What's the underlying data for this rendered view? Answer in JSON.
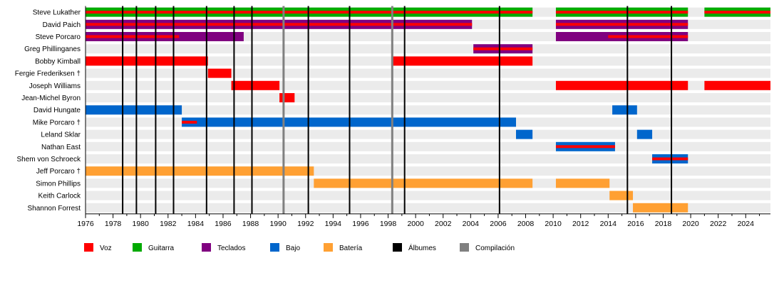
{
  "chart_data": {
    "type": "timeline",
    "x_range": [
      1976,
      2025.8
    ],
    "x_ticks": [
      1976,
      1978,
      1980,
      1982,
      1984,
      1986,
      1988,
      1990,
      1992,
      1994,
      1996,
      1998,
      2000,
      2002,
      2004,
      2006,
      2008,
      2010,
      2012,
      2014,
      2016,
      2018,
      2020,
      2022,
      2024
    ],
    "members": [
      {
        "name": "Steve Lukather",
        "bars": [
          {
            "role": "Guitarra",
            "start": 1976,
            "end": 2008.5,
            "overlay": "Voz"
          },
          {
            "role": "Guitarra",
            "start": 2010.2,
            "end": 2019.8,
            "overlay": "Voz"
          },
          {
            "role": "Guitarra",
            "start": 2021,
            "end": 2025.8,
            "overlay": "Voz"
          }
        ]
      },
      {
        "name": "David Paich",
        "bars": [
          {
            "role": "Teclados",
            "start": 1976,
            "end": 2004.1,
            "overlay": "Voz"
          },
          {
            "role": "Teclados",
            "start": 2010.2,
            "end": 2019.8,
            "overlay": "Voz"
          }
        ]
      },
      {
        "name": "Steve Porcaro",
        "bars": [
          {
            "role": "Teclados",
            "start": 1976,
            "end": 1987.5,
            "overlay": "Voz",
            "overlay_end": 1982.8
          },
          {
            "role": "Teclados",
            "start": 2010.2,
            "end": 2019.8,
            "overlay": "Voz",
            "overlay_start": 2014
          }
        ]
      },
      {
        "name": "Greg Phillinganes",
        "bars": [
          {
            "role": "Teclados",
            "start": 2004.2,
            "end": 2008.5,
            "overlay": "Voz"
          }
        ]
      },
      {
        "name": "Bobby Kimball",
        "bars": [
          {
            "role": "Voz",
            "start": 1976,
            "end": 1984.9
          },
          {
            "role": "Voz",
            "start": 1998.3,
            "end": 2008.5
          }
        ]
      },
      {
        "name": "Fergie Frederiksen †",
        "bars": [
          {
            "role": "Voz",
            "start": 1984.9,
            "end": 1986.6
          }
        ]
      },
      {
        "name": "Joseph Williams",
        "bars": [
          {
            "role": "Voz",
            "start": 1986.6,
            "end": 1990.1
          },
          {
            "role": "Voz",
            "start": 2010.2,
            "end": 2019.8
          },
          {
            "role": "Voz",
            "start": 2021,
            "end": 2025.8
          }
        ]
      },
      {
        "name": "Jean-Michel Byron",
        "bars": [
          {
            "role": "Voz",
            "start": 1990.1,
            "end": 1991.2
          }
        ]
      },
      {
        "name": "David Hungate",
        "bars": [
          {
            "role": "Bajo",
            "start": 1976,
            "end": 1983
          },
          {
            "role": "Bajo",
            "start": 2014.3,
            "end": 2016.1
          }
        ]
      },
      {
        "name": "Mike Porcaro †",
        "bars": [
          {
            "role": "Bajo",
            "start": 1983,
            "end": 2007.3,
            "overlay": "Voz",
            "overlay_end": 1984.1
          }
        ]
      },
      {
        "name": "Leland Sklar",
        "bars": [
          {
            "role": "Bajo",
            "start": 2007.3,
            "end": 2008.5
          },
          {
            "role": "Bajo",
            "start": 2016.1,
            "end": 2017.2
          }
        ]
      },
      {
        "name": "Nathan East",
        "bars": [
          {
            "role": "Bajo",
            "start": 2010.2,
            "end": 2014.5,
            "overlay": "Voz"
          }
        ]
      },
      {
        "name": "Shem von Schroeck",
        "bars": [
          {
            "role": "Bajo",
            "start": 2017.2,
            "end": 2019.8,
            "overlay": "Voz"
          }
        ]
      },
      {
        "name": "Jeff Porcaro †",
        "bars": [
          {
            "role": "Batería",
            "start": 1976,
            "end": 1992.6
          }
        ]
      },
      {
        "name": "Simon Phillips",
        "bars": [
          {
            "role": "Batería",
            "start": 1992.6,
            "end": 2008.5
          },
          {
            "role": "Batería",
            "start": 2010.2,
            "end": 2014.1
          }
        ]
      },
      {
        "name": "Keith Carlock",
        "bars": [
          {
            "role": "Batería",
            "start": 2014.1,
            "end": 2015.8
          }
        ]
      },
      {
        "name": "Shannon Forrest",
        "bars": [
          {
            "role": "Batería",
            "start": 2015.8,
            "end": 2019.8
          }
        ]
      }
    ],
    "albums": [
      1978.7,
      1979.7,
      1981.1,
      1982.4,
      1984.8,
      1986.8,
      1988.1,
      1992.2,
      1995.2,
      1999.2,
      2006.1,
      2015.4,
      2018.6
    ],
    "compilations": [
      1990.4,
      1998.3
    ],
    "legend": [
      {
        "label": "Voz",
        "color": "#ff0000"
      },
      {
        "label": "Guitarra",
        "color": "#00aa00"
      },
      {
        "label": "Teclados",
        "color": "#800080"
      },
      {
        "label": "Bajo",
        "color": "#0066cc"
      },
      {
        "label": "Batería",
        "color": "#ffa033"
      },
      {
        "label": "Álbumes",
        "color": "#000000"
      },
      {
        "label": "Compilación",
        "color": "#808080"
      }
    ],
    "colors": {
      "Voz": "#ff0000",
      "Guitarra": "#00aa00",
      "Teclados": "#800080",
      "Bajo": "#0066cc",
      "Batería": "#ffa033",
      "album_line": "#000000",
      "compilation_line": "#808080",
      "row_stripe": "#ebebeb"
    }
  }
}
